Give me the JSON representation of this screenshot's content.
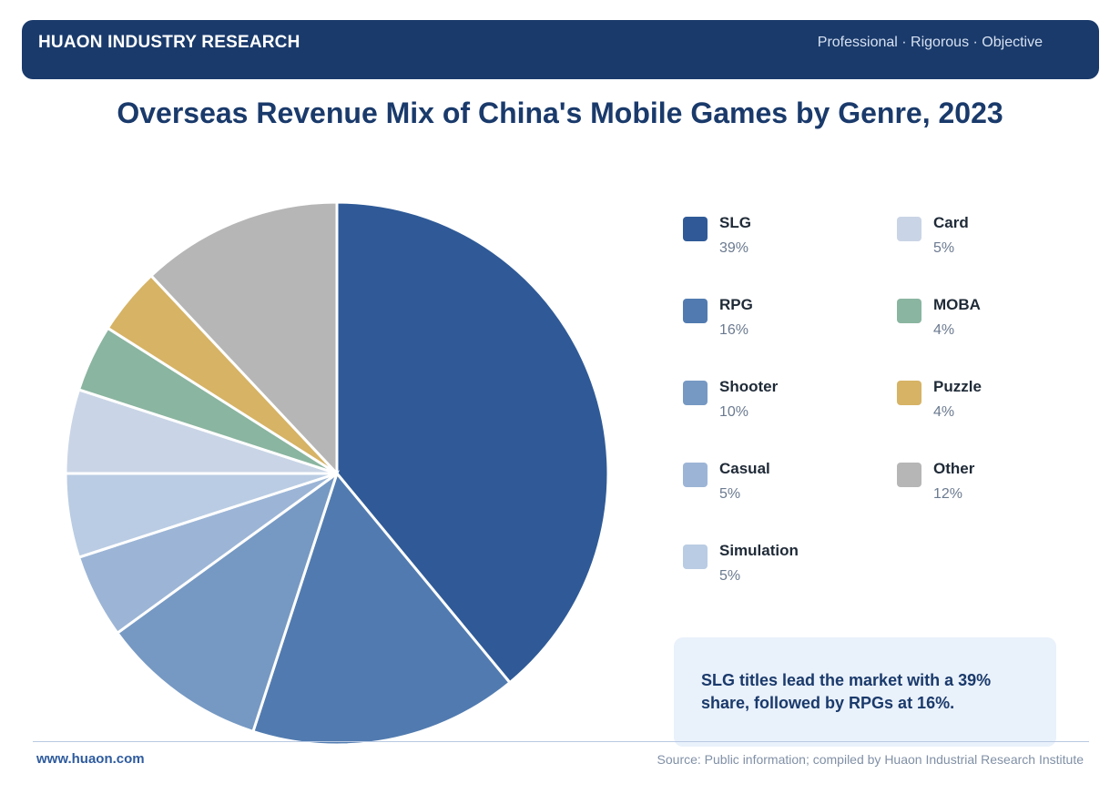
{
  "header": {
    "brand": "HUAON INDUSTRY RESEARCH",
    "tagline": "Professional · Rigorous · Objective",
    "background_color": "#1a3a6b"
  },
  "chart_data": {
    "type": "pie",
    "title": "Overseas Revenue Mix of China's Mobile Games by Genre, 2023",
    "legend_placement": "right",
    "slices": [
      {
        "label": "SLG",
        "value": 39,
        "value_label": "39%",
        "color": "#2f5a97"
      },
      {
        "label": "RPG",
        "value": 16,
        "value_label": "16%",
        "color": "#517bb0"
      },
      {
        "label": "Shooter",
        "value": 10,
        "value_label": "10%",
        "color": "#7699c3"
      },
      {
        "label": "Casual",
        "value": 5,
        "value_label": "5%",
        "color": "#9cb5d6"
      },
      {
        "label": "Simulation",
        "value": 5,
        "value_label": "5%",
        "color": "#b9cce3"
      },
      {
        "label": "Card",
        "value": 5,
        "value_label": "5%",
        "color": "#c9d5e6"
      },
      {
        "label": "MOBA",
        "value": 4,
        "value_label": "4%",
        "color": "#8ab5a0"
      },
      {
        "label": "Puzzle",
        "value": 4,
        "value_label": "4%",
        "color": "#d6b365"
      },
      {
        "label": "Other",
        "value": 12,
        "value_label": "12%",
        "color": "#b6b6b6"
      }
    ]
  },
  "note": "SLG titles lead the market with a 39% share, followed by RPGs at 16%.",
  "footer": {
    "website": "www.huaon.com",
    "source": "Source: Public information; compiled by Huaon Industrial Research Institute"
  }
}
